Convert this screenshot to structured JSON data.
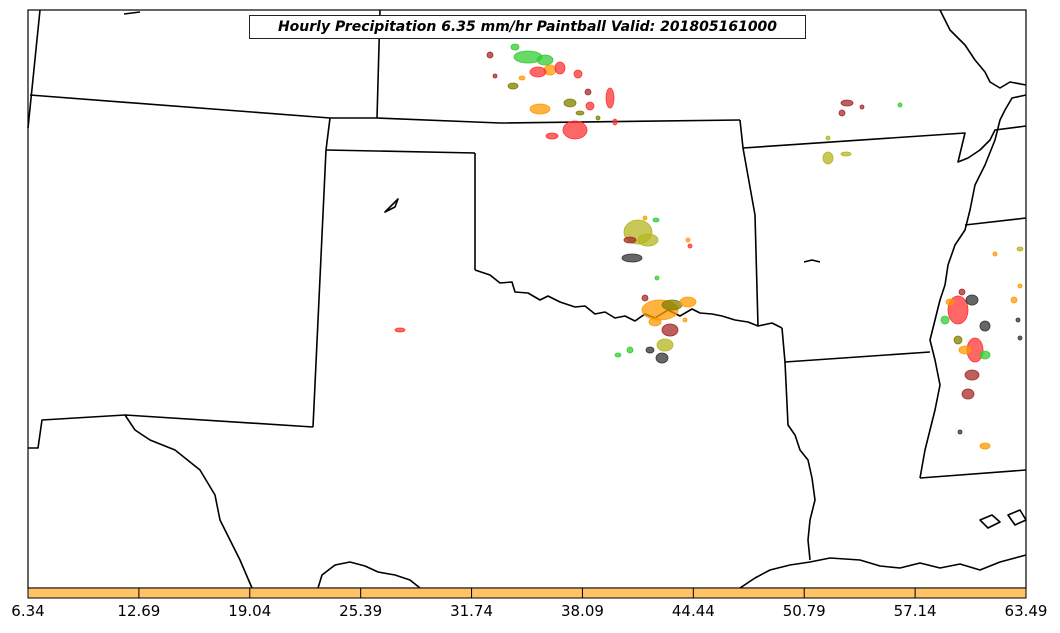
{
  "map": {
    "title": "Hourly Precipitation 6.35 mm/hr Paintball Valid: 201805161000",
    "background_color": "#ffffff",
    "border_color": "#000000",
    "colorbar": {
      "fill_color": "#ffc266",
      "tick_labels": [
        "6.34",
        "12.69",
        "19.04",
        "25.39",
        "31.74",
        "38.09",
        "44.44",
        "50.79",
        "57.14",
        "63.49"
      ]
    },
    "paintball_colors": [
      "#33cc33",
      "#ff3333",
      "#ff9900",
      "#808000",
      "#a52a2a",
      "#333333",
      "#b5b521"
    ]
  }
}
